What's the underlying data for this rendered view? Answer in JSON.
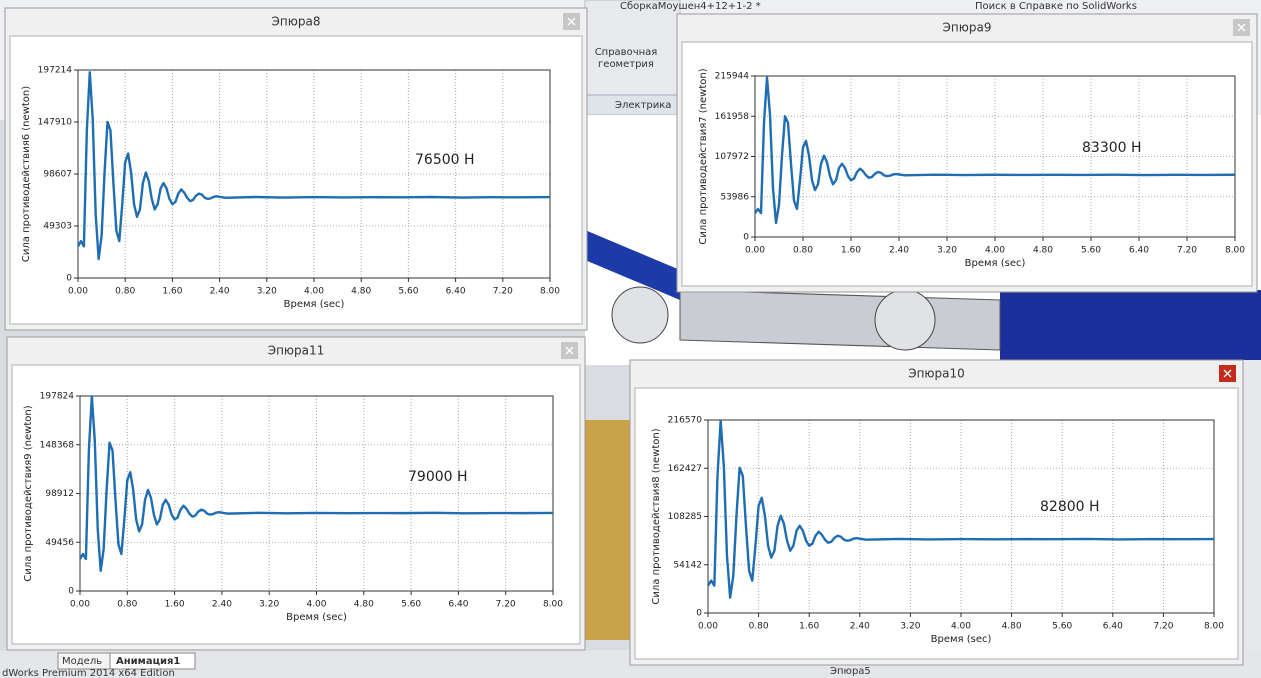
{
  "background": {
    "document_title": "СборкаМоушен4+12+1-2 *",
    "search": "Поиск в Справке по SolidWorks",
    "toolbar": [
      "Справочная",
      "геометрия"
    ],
    "tab": "Электрика",
    "bottom_tabs": [
      "Модель",
      "Анимация1"
    ],
    "hidden_window": "Эпюра5",
    "status": "dWorks Premium 2014 x64 Edition"
  },
  "chart_data": [
    {
      "type": "line",
      "title": "Эпюра8",
      "ylabel": "Сила противодействия6 (newton)",
      "xlabel": "Время (sec)",
      "annotation": "76500 Н",
      "color": "#1f6db3",
      "grid": true,
      "xlim": [
        0,
        8
      ],
      "ylim": [
        0,
        197214
      ],
      "xticks": [
        {
          "value": 0,
          "label": "0.00"
        },
        {
          "value": 0.8,
          "label": "0.80"
        },
        {
          "value": 1.6,
          "label": "1.60"
        },
        {
          "value": 2.4,
          "label": "2.40"
        },
        {
          "value": 3.2,
          "label": "3.20"
        },
        {
          "value": 4,
          "label": "4.00"
        },
        {
          "value": 4.8,
          "label": "4.80"
        },
        {
          "value": 5.6,
          "label": "5.60"
        },
        {
          "value": 6.4,
          "label": "6.40"
        },
        {
          "value": 7.2,
          "label": "7.20"
        },
        {
          "value": 8,
          "label": "8.00"
        }
      ],
      "yticks": [
        0,
        49303,
        98607,
        147910,
        197214
      ],
      "x": [
        0,
        0.05,
        0.1,
        0.15,
        0.2,
        0.25,
        0.3,
        0.35,
        0.4,
        0.45,
        0.5,
        0.55,
        0.6,
        0.65,
        0.7,
        0.75,
        0.8,
        0.85,
        0.9,
        0.95,
        1,
        1.05,
        1.1,
        1.15,
        1.2,
        1.25,
        1.3,
        1.35,
        1.4,
        1.45,
        1.5,
        1.55,
        1.6,
        1.65,
        1.7,
        1.75,
        1.8,
        1.85,
        1.9,
        1.95,
        2,
        2.05,
        2.1,
        2.15,
        2.2,
        2.25,
        2.3,
        2.35,
        2.4,
        2.45,
        2.5,
        3,
        3.5,
        4,
        4.5,
        5,
        5.5,
        6,
        6.5,
        7,
        7.5,
        8
      ],
      "values": [
        30000,
        35000,
        30000,
        140000,
        195000,
        150000,
        60000,
        18000,
        40000,
        100000,
        148000,
        140000,
        90000,
        45000,
        35000,
        70000,
        110000,
        118000,
        100000,
        70000,
        58000,
        65000,
        90000,
        100000,
        92000,
        75000,
        65000,
        70000,
        85000,
        90000,
        85000,
        75000,
        70000,
        72000,
        80000,
        84000,
        81000,
        76000,
        73000,
        74000,
        78000,
        80000,
        79000,
        76000,
        75000,
        75500,
        77000,
        77500,
        77000,
        76500,
        76000,
        76800,
        76300,
        76700,
        76400,
        76600,
        76500,
        76800,
        76300,
        76600,
        76500,
        76700
      ]
    },
    {
      "type": "line",
      "title": "Эпюра9",
      "ylabel": "Сила противодействия7 (newton)",
      "xlabel": "Время (sec)",
      "annotation": "83300 Н",
      "color": "#1f6db3",
      "grid": true,
      "xlim": [
        0,
        8
      ],
      "ylim": [
        0,
        215944
      ],
      "xticks": [
        {
          "value": 0,
          "label": "0.00"
        },
        {
          "value": 0.8,
          "label": "0.80"
        },
        {
          "value": 1.6,
          "label": "1.60"
        },
        {
          "value": 2.4,
          "label": "2.40"
        },
        {
          "value": 3.2,
          "label": "3.20"
        },
        {
          "value": 4,
          "label": "4.00"
        },
        {
          "value": 4.8,
          "label": "4.80"
        },
        {
          "value": 5.6,
          "label": "5.60"
        },
        {
          "value": 6.4,
          "label": "6.40"
        },
        {
          "value": 7.2,
          "label": "7.20"
        },
        {
          "value": 8,
          "label": "8.00"
        }
      ],
      "yticks": [
        0,
        53986,
        107972,
        161958,
        215944
      ],
      "x": [
        0,
        0.05,
        0.1,
        0.15,
        0.2,
        0.25,
        0.3,
        0.35,
        0.4,
        0.45,
        0.5,
        0.55,
        0.6,
        0.65,
        0.7,
        0.75,
        0.8,
        0.85,
        0.9,
        0.95,
        1,
        1.05,
        1.1,
        1.15,
        1.2,
        1.25,
        1.3,
        1.35,
        1.4,
        1.45,
        1.5,
        1.55,
        1.6,
        1.65,
        1.7,
        1.75,
        1.8,
        1.85,
        1.9,
        1.95,
        2,
        2.05,
        2.1,
        2.15,
        2.2,
        2.25,
        2.3,
        2.35,
        2.4,
        2.45,
        2.5,
        3,
        3.5,
        4,
        4.5,
        5,
        5.5,
        6,
        6.5,
        7,
        7.5,
        8
      ],
      "values": [
        32150,
        37650,
        32150,
        153150,
        213650,
        164150,
        65150,
        18950,
        43150,
        109150,
        161950,
        153150,
        98150,
        48650,
        37650,
        76150,
        120150,
        128950,
        109150,
        76150,
        62950,
        70650,
        98150,
        109150,
        100350,
        81650,
        70650,
        76150,
        92650,
        98150,
        92650,
        81650,
        76150,
        78350,
        87150,
        91550,
        88250,
        82750,
        79450,
        80550,
        84950,
        87150,
        86050,
        82750,
        81650,
        82200,
        83850,
        84400,
        83850,
        83300,
        82750,
        83600,
        83100,
        83500,
        83200,
        83400,
        83300,
        83600,
        83100,
        83400,
        83300,
        83500
      ]
    },
    {
      "type": "line",
      "title": "Эпюра11",
      "ylabel": "Сила противодействия9 (newton)",
      "xlabel": "Время (sec)",
      "annotation": "79000 Н",
      "color": "#1f6db3",
      "grid": true,
      "xlim": [
        0,
        8
      ],
      "ylim": [
        0,
        197824
      ],
      "xticks": [
        {
          "value": 0,
          "label": "0.00"
        },
        {
          "value": 0.8,
          "label": "0.80"
        },
        {
          "value": 1.6,
          "label": "1.60"
        },
        {
          "value": 2.4,
          "label": "2.40"
        },
        {
          "value": 3.2,
          "label": "3.20"
        },
        {
          "value": 4,
          "label": "4.00"
        },
        {
          "value": 4.8,
          "label": "4.80"
        },
        {
          "value": 5.6,
          "label": "5.60"
        },
        {
          "value": 6.4,
          "label": "6.40"
        },
        {
          "value": 7.2,
          "label": "7.20"
        },
        {
          "value": 8,
          "label": "8.00"
        }
      ],
      "yticks": [
        0,
        49456,
        98912,
        148368,
        197824
      ],
      "x": [
        0,
        0.05,
        0.1,
        0.15,
        0.2,
        0.25,
        0.3,
        0.35,
        0.4,
        0.45,
        0.5,
        0.55,
        0.6,
        0.65,
        0.7,
        0.75,
        0.8,
        0.85,
        0.9,
        0.95,
        1,
        1.05,
        1.1,
        1.15,
        1.2,
        1.25,
        1.3,
        1.35,
        1.4,
        1.45,
        1.5,
        1.55,
        1.6,
        1.65,
        1.7,
        1.75,
        1.8,
        1.85,
        1.9,
        1.95,
        2,
        2.05,
        2.1,
        2.15,
        2.2,
        2.25,
        2.3,
        2.35,
        2.4,
        2.45,
        2.5,
        3,
        3.5,
        4,
        4.5,
        5,
        5.5,
        6,
        6.5,
        7,
        7.5,
        8
      ],
      "values": [
        32500,
        37500,
        32500,
        142500,
        197500,
        152500,
        62500,
        20500,
        42500,
        102500,
        150500,
        142500,
        92500,
        47500,
        37500,
        72500,
        112500,
        120500,
        102500,
        72500,
        60500,
        67500,
        92500,
        102500,
        94500,
        77500,
        67500,
        72500,
        87500,
        92500,
        87500,
        77500,
        72500,
        74500,
        82500,
        86500,
        83500,
        78500,
        75500,
        76500,
        80500,
        82500,
        81500,
        78500,
        77500,
        78000,
        79500,
        80000,
        79500,
        79000,
        78500,
        79300,
        78800,
        79200,
        78900,
        79100,
        79000,
        79300,
        78800,
        79100,
        79000,
        79200
      ]
    },
    {
      "type": "line",
      "title": "Эпюра10",
      "ylabel": "Сила противодействия8 (newton)",
      "xlabel": "Время (sec)",
      "annotation": "82800 Н",
      "color": "#1f6db3",
      "grid": true,
      "xlim": [
        0,
        8
      ],
      "ylim": [
        0,
        216570
      ],
      "xticks": [
        {
          "value": 0,
          "label": "0.00"
        },
        {
          "value": 0.8,
          "label": "0.80"
        },
        {
          "value": 1.6,
          "label": "1.60"
        },
        {
          "value": 2.4,
          "label": "2.40"
        },
        {
          "value": 3.2,
          "label": "3.20"
        },
        {
          "value": 4,
          "label": "4.00"
        },
        {
          "value": 4.8,
          "label": "4.80"
        },
        {
          "value": 5.6,
          "label": "5.60"
        },
        {
          "value": 6.4,
          "label": "6.40"
        },
        {
          "value": 7.2,
          "label": "7.20"
        },
        {
          "value": 8,
          "label": "8.00"
        }
      ],
      "yticks": [
        0,
        54142,
        108285,
        162427,
        216570
      ],
      "x": [
        0,
        0.05,
        0.1,
        0.15,
        0.2,
        0.25,
        0.3,
        0.35,
        0.4,
        0.45,
        0.5,
        0.55,
        0.6,
        0.65,
        0.7,
        0.75,
        0.8,
        0.85,
        0.9,
        0.95,
        1,
        1.05,
        1.1,
        1.15,
        1.2,
        1.25,
        1.3,
        1.35,
        1.4,
        1.45,
        1.5,
        1.55,
        1.6,
        1.65,
        1.7,
        1.75,
        1.8,
        1.85,
        1.9,
        1.95,
        2,
        2.05,
        2.1,
        2.15,
        2.2,
        2.25,
        2.3,
        2.35,
        2.4,
        2.45,
        2.5,
        3,
        3.5,
        4,
        4.5,
        5,
        5.5,
        6,
        6.5,
        7,
        7.5,
        8
      ],
      "values": [
        30720,
        36320,
        30720,
        153920,
        215520,
        165120,
        64320,
        17280,
        41920,
        109120,
        162880,
        153920,
        97920,
        47520,
        36320,
        75520,
        120320,
        129280,
        109120,
        75520,
        62080,
        69920,
        97920,
        109120,
        100160,
        81120,
        69920,
        75520,
        92320,
        97920,
        92320,
        81120,
        75520,
        77760,
        86720,
        91200,
        87840,
        82240,
        78880,
        80000,
        84480,
        86720,
        85600,
        82240,
        81120,
        81680,
        83360,
        83920,
        83360,
        82800,
        82240,
        83100,
        82600,
        83000,
        82700,
        82900,
        82800,
        83100,
        82600,
        82900,
        82800,
        83000
      ]
    }
  ]
}
